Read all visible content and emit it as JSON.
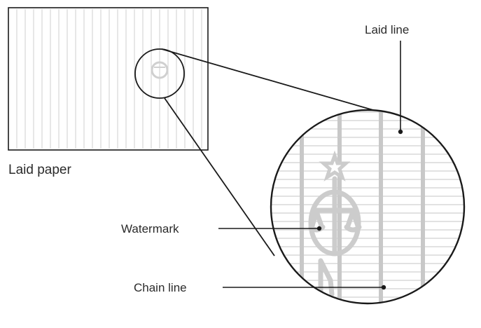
{
  "labels": {
    "laid_paper": "Laid paper",
    "laid_line": "Laid line",
    "watermark": "Watermark",
    "chain_line": "Chain line"
  },
  "colors": {
    "outline": "#1a1a1a",
    "paper_lines": "#cfcfcf",
    "laid_lines": "#d8d8d8",
    "chain_lines": "#c8c8c8",
    "watermark": "#cccccc",
    "text": "#2b2b2b"
  }
}
